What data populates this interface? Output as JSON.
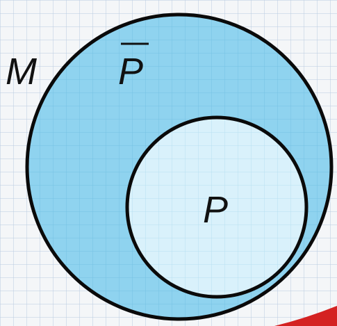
{
  "diagram": {
    "type": "venn-subset",
    "sets": [
      {
        "id": "outer",
        "label": "M"
      },
      {
        "id": "complement",
        "label": "P",
        "overline": true
      },
      {
        "id": "inner",
        "label": "P"
      }
    ]
  },
  "colors": {
    "background": "#f4f6f8",
    "grid": "#b8cbe0",
    "outer_fill": "#8fd3ef",
    "inner_fill": "#d9f1fb",
    "stroke": "#0a0a0a",
    "red_accent": "#d42222"
  }
}
